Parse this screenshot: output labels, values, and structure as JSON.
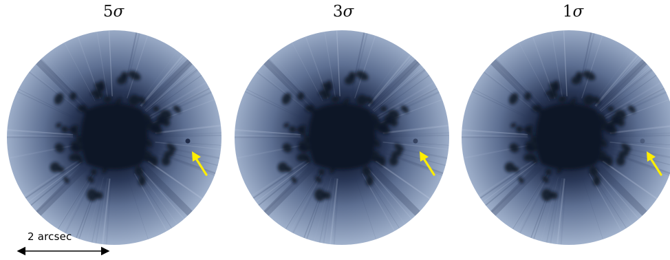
{
  "panels": [
    {
      "label_number": "5",
      "label_symbol": "σ"
    },
    {
      "label_number": "3",
      "label_symbol": "σ"
    },
    {
      "label_number": "1",
      "label_symbol": "σ"
    }
  ],
  "scale_bar": {
    "label": "2 arcsec"
  },
  "colors": {
    "disk_outer": "#9fb0cb",
    "disk_mid": "#5d6f92",
    "disk_core": "#0c1426",
    "arrow": "#ffee00",
    "scale_bar": "#000000"
  }
}
